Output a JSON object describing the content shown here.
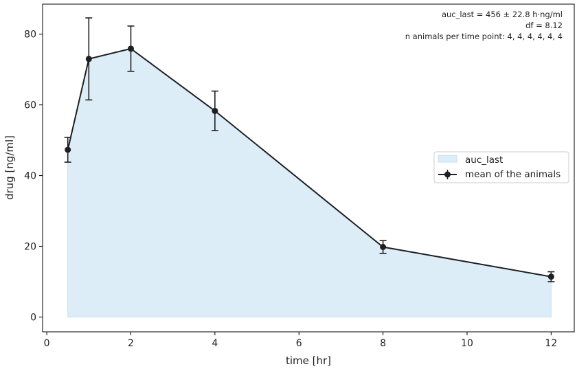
{
  "chart_data": {
    "type": "line",
    "xlabel": "time [hr]",
    "ylabel": "drug [ng/ml]",
    "xlim": [
      -0.1,
      12.55
    ],
    "ylim": [
      -4.2,
      88.5
    ],
    "xticks": [
      0,
      2,
      4,
      6,
      8,
      10,
      12
    ],
    "yticks": [
      0,
      20,
      40,
      60,
      80
    ],
    "grid": false,
    "legend_position": "center-right",
    "series": [
      {
        "name": "mean of the animals",
        "x": [
          0.5,
          1,
          2,
          4,
          8,
          12
        ],
        "y": [
          47.3,
          73.0,
          75.9,
          58.3,
          19.8,
          11.4
        ],
        "yerr": [
          3.5,
          11.6,
          6.4,
          5.6,
          1.8,
          1.4
        ],
        "color": "#1f1f1f"
      }
    ],
    "area": {
      "name": "auc_last",
      "color": "#dcedf8",
      "edge_color": "#c5e0f0"
    },
    "annotations": [
      "auc_last = 456 ± 22.8 h·ng/ml",
      "df = 8.12",
      "n animals per time point: 4, 4, 4, 4, 4, 4"
    ]
  }
}
